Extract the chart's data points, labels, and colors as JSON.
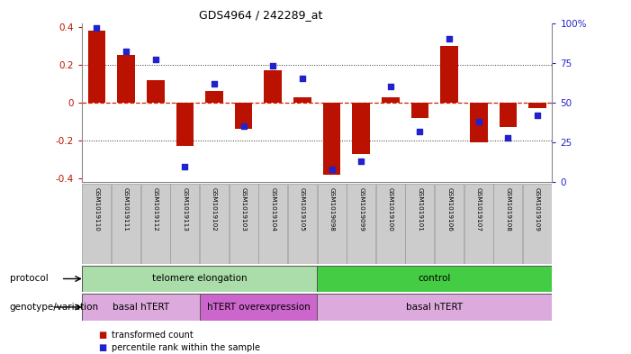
{
  "title": "GDS4964 / 242289_at",
  "samples": [
    "GSM1019110",
    "GSM1019111",
    "GSM1019112",
    "GSM1019113",
    "GSM1019102",
    "GSM1019103",
    "GSM1019104",
    "GSM1019105",
    "GSM1019098",
    "GSM1019099",
    "GSM1019100",
    "GSM1019101",
    "GSM1019106",
    "GSM1019107",
    "GSM1019108",
    "GSM1019109"
  ],
  "bar_values": [
    0.38,
    0.25,
    0.12,
    -0.23,
    0.06,
    -0.14,
    0.17,
    0.03,
    -0.38,
    -0.27,
    0.03,
    -0.08,
    0.3,
    -0.21,
    -0.13,
    -0.03
  ],
  "dot_percentiles": [
    0.97,
    0.82,
    0.77,
    0.1,
    0.62,
    0.35,
    0.73,
    0.65,
    0.08,
    0.13,
    0.6,
    0.32,
    0.9,
    0.38,
    0.28,
    0.42
  ],
  "ylim": [
    -0.42,
    0.42
  ],
  "yticks": [
    -0.4,
    -0.2,
    0.0,
    0.2,
    0.4
  ],
  "ytick_labels": [
    "-0.4",
    "-0.2",
    "0",
    "0.2",
    "0.4"
  ],
  "right_ytick_vals": [
    0.0,
    0.25,
    0.5,
    0.75,
    1.0
  ],
  "right_ytick_labels": [
    "0",
    "25",
    "50",
    "75",
    "100%"
  ],
  "bar_color": "#bb1100",
  "dot_color": "#2222cc",
  "hline0_color": "#cc2200",
  "dotline_color": "#333333",
  "bg_plot_color": "#ffffff",
  "protocol_groups": [
    {
      "label": "telomere elongation",
      "start": 0,
      "end": 8,
      "color": "#aaddaa"
    },
    {
      "label": "control",
      "start": 8,
      "end": 16,
      "color": "#44cc44"
    }
  ],
  "genotype_groups": [
    {
      "label": "basal hTERT",
      "start": 0,
      "end": 4,
      "color": "#ddaadd"
    },
    {
      "label": "hTERT overexpression",
      "start": 4,
      "end": 8,
      "color": "#cc66cc"
    },
    {
      "label": "basal hTERT",
      "start": 8,
      "end": 16,
      "color": "#ddaadd"
    }
  ],
  "protocol_label": "protocol",
  "genotype_label": "genotype/variation",
  "legend_bar_label": "transformed count",
  "legend_dot_label": "percentile rank within the sample",
  "sample_box_color": "#cccccc",
  "sample_box_edge": "#999999"
}
